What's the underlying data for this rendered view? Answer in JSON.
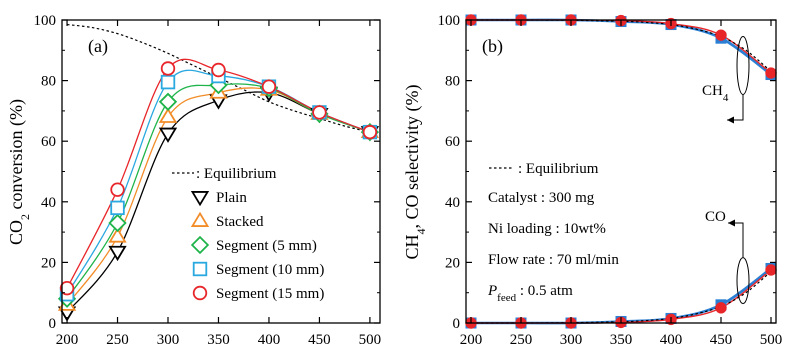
{
  "chart_data": [
    {
      "type": "line",
      "panel_label": "(a)",
      "ylabel_parts": [
        "CO",
        "2",
        " conversion (%)"
      ],
      "xlabel": "",
      "xlim": [
        195,
        510
      ],
      "ylim": [
        0,
        100
      ],
      "xticks": [
        200,
        250,
        300,
        350,
        400,
        450,
        500
      ],
      "yticks": [
        0,
        20,
        40,
        60,
        80,
        100
      ],
      "x": [
        200,
        250,
        300,
        350,
        400,
        450,
        500
      ],
      "equilibrium": {
        "legend": ": Equilibrium",
        "x": [
          200,
          225,
          250,
          275,
          300,
          325,
          350,
          375,
          400,
          425,
          450,
          475,
          500
        ],
        "y": [
          98.5,
          97.5,
          95.5,
          92.5,
          89,
          85,
          81,
          77,
          73,
          70,
          67.5,
          65,
          63
        ]
      },
      "series": [
        {
          "name": "Plain",
          "marker": "triangle-down",
          "color": "#000000",
          "values": [
            3.5,
            23.5,
            62.5,
            73.5,
            76,
            69,
            63
          ]
        },
        {
          "name": "Stacked",
          "marker": "triangle-up",
          "color": "#f28c28",
          "values": [
            6,
            28.5,
            68,
            76,
            77,
            69,
            63
          ]
        },
        {
          "name": "Segment (5 mm)",
          "marker": "diamond",
          "color": "#1fb44a",
          "values": [
            8,
            33,
            73,
            78.5,
            77.5,
            69,
            63
          ]
        },
        {
          "name": "Segment (10 mm)",
          "marker": "square",
          "color": "#2aa8e0",
          "values": [
            9.5,
            38,
            79.5,
            81.5,
            78,
            69.5,
            63
          ]
        },
        {
          "name": "Segment (15 mm)",
          "marker": "circle",
          "color": "#e8262a",
          "values": [
            11.5,
            44,
            84,
            83.5,
            78,
            69.5,
            63
          ]
        }
      ]
    },
    {
      "type": "line",
      "panel_label": "(b)",
      "ylabel_parts": [
        "CH",
        "4",
        ", CO selectivity (%)"
      ],
      "xlabel": "",
      "xlim": [
        195,
        505
      ],
      "ylim": [
        0,
        100
      ],
      "xticks": [
        200,
        250,
        300,
        350,
        400,
        450,
        500
      ],
      "yticks": [
        0,
        20,
        40,
        60,
        80,
        100
      ],
      "x": [
        200,
        250,
        300,
        350,
        400,
        450,
        500
      ],
      "equilibrium": {
        "legend": ": Equilibrium",
        "ch4_x": [
          200,
          250,
          300,
          350,
          375,
          400,
          425,
          450,
          475,
          500
        ],
        "ch4_y": [
          100,
          100,
          99.9,
          99.6,
          99.2,
          98.5,
          97,
          94.5,
          90,
          83
        ],
        "co_x": [
          200,
          250,
          300,
          350,
          375,
          400,
          425,
          450,
          475,
          500
        ],
        "co_y": [
          0,
          0,
          0.1,
          0.4,
          0.8,
          1.5,
          3,
          5.5,
          10,
          17
        ]
      },
      "series": [
        {
          "name": "CH4 (blue)",
          "marker": "square",
          "color": "#2a7fd4",
          "values": [
            100,
            100,
            100,
            99.5,
            98.5,
            94,
            82
          ]
        },
        {
          "name": "CH4 (red)",
          "marker": "circle",
          "color": "#e8262a",
          "values": [
            100,
            100,
            100,
            99.8,
            98.8,
            95,
            82.5
          ]
        },
        {
          "name": "CO (blue)",
          "marker": "square",
          "color": "#2a7fd4",
          "values": [
            0,
            0,
            0,
            0.5,
            1.5,
            6,
            18
          ]
        },
        {
          "name": "CO (red)",
          "marker": "circle",
          "color": "#e8262a",
          "values": [
            0,
            0,
            0,
            0.2,
            1.2,
            5,
            17.5
          ]
        }
      ],
      "annotations": {
        "ch4_label_parts": [
          "CH",
          "4"
        ],
        "co_label": "CO",
        "notes": [
          "Catalyst : 300 mg",
          "Ni loading : 10wt%",
          "Flow rate : 70 ml/min"
        ],
        "pressure_parts": [
          "P",
          "feed",
          " : 0.5 atm"
        ]
      }
    }
  ]
}
